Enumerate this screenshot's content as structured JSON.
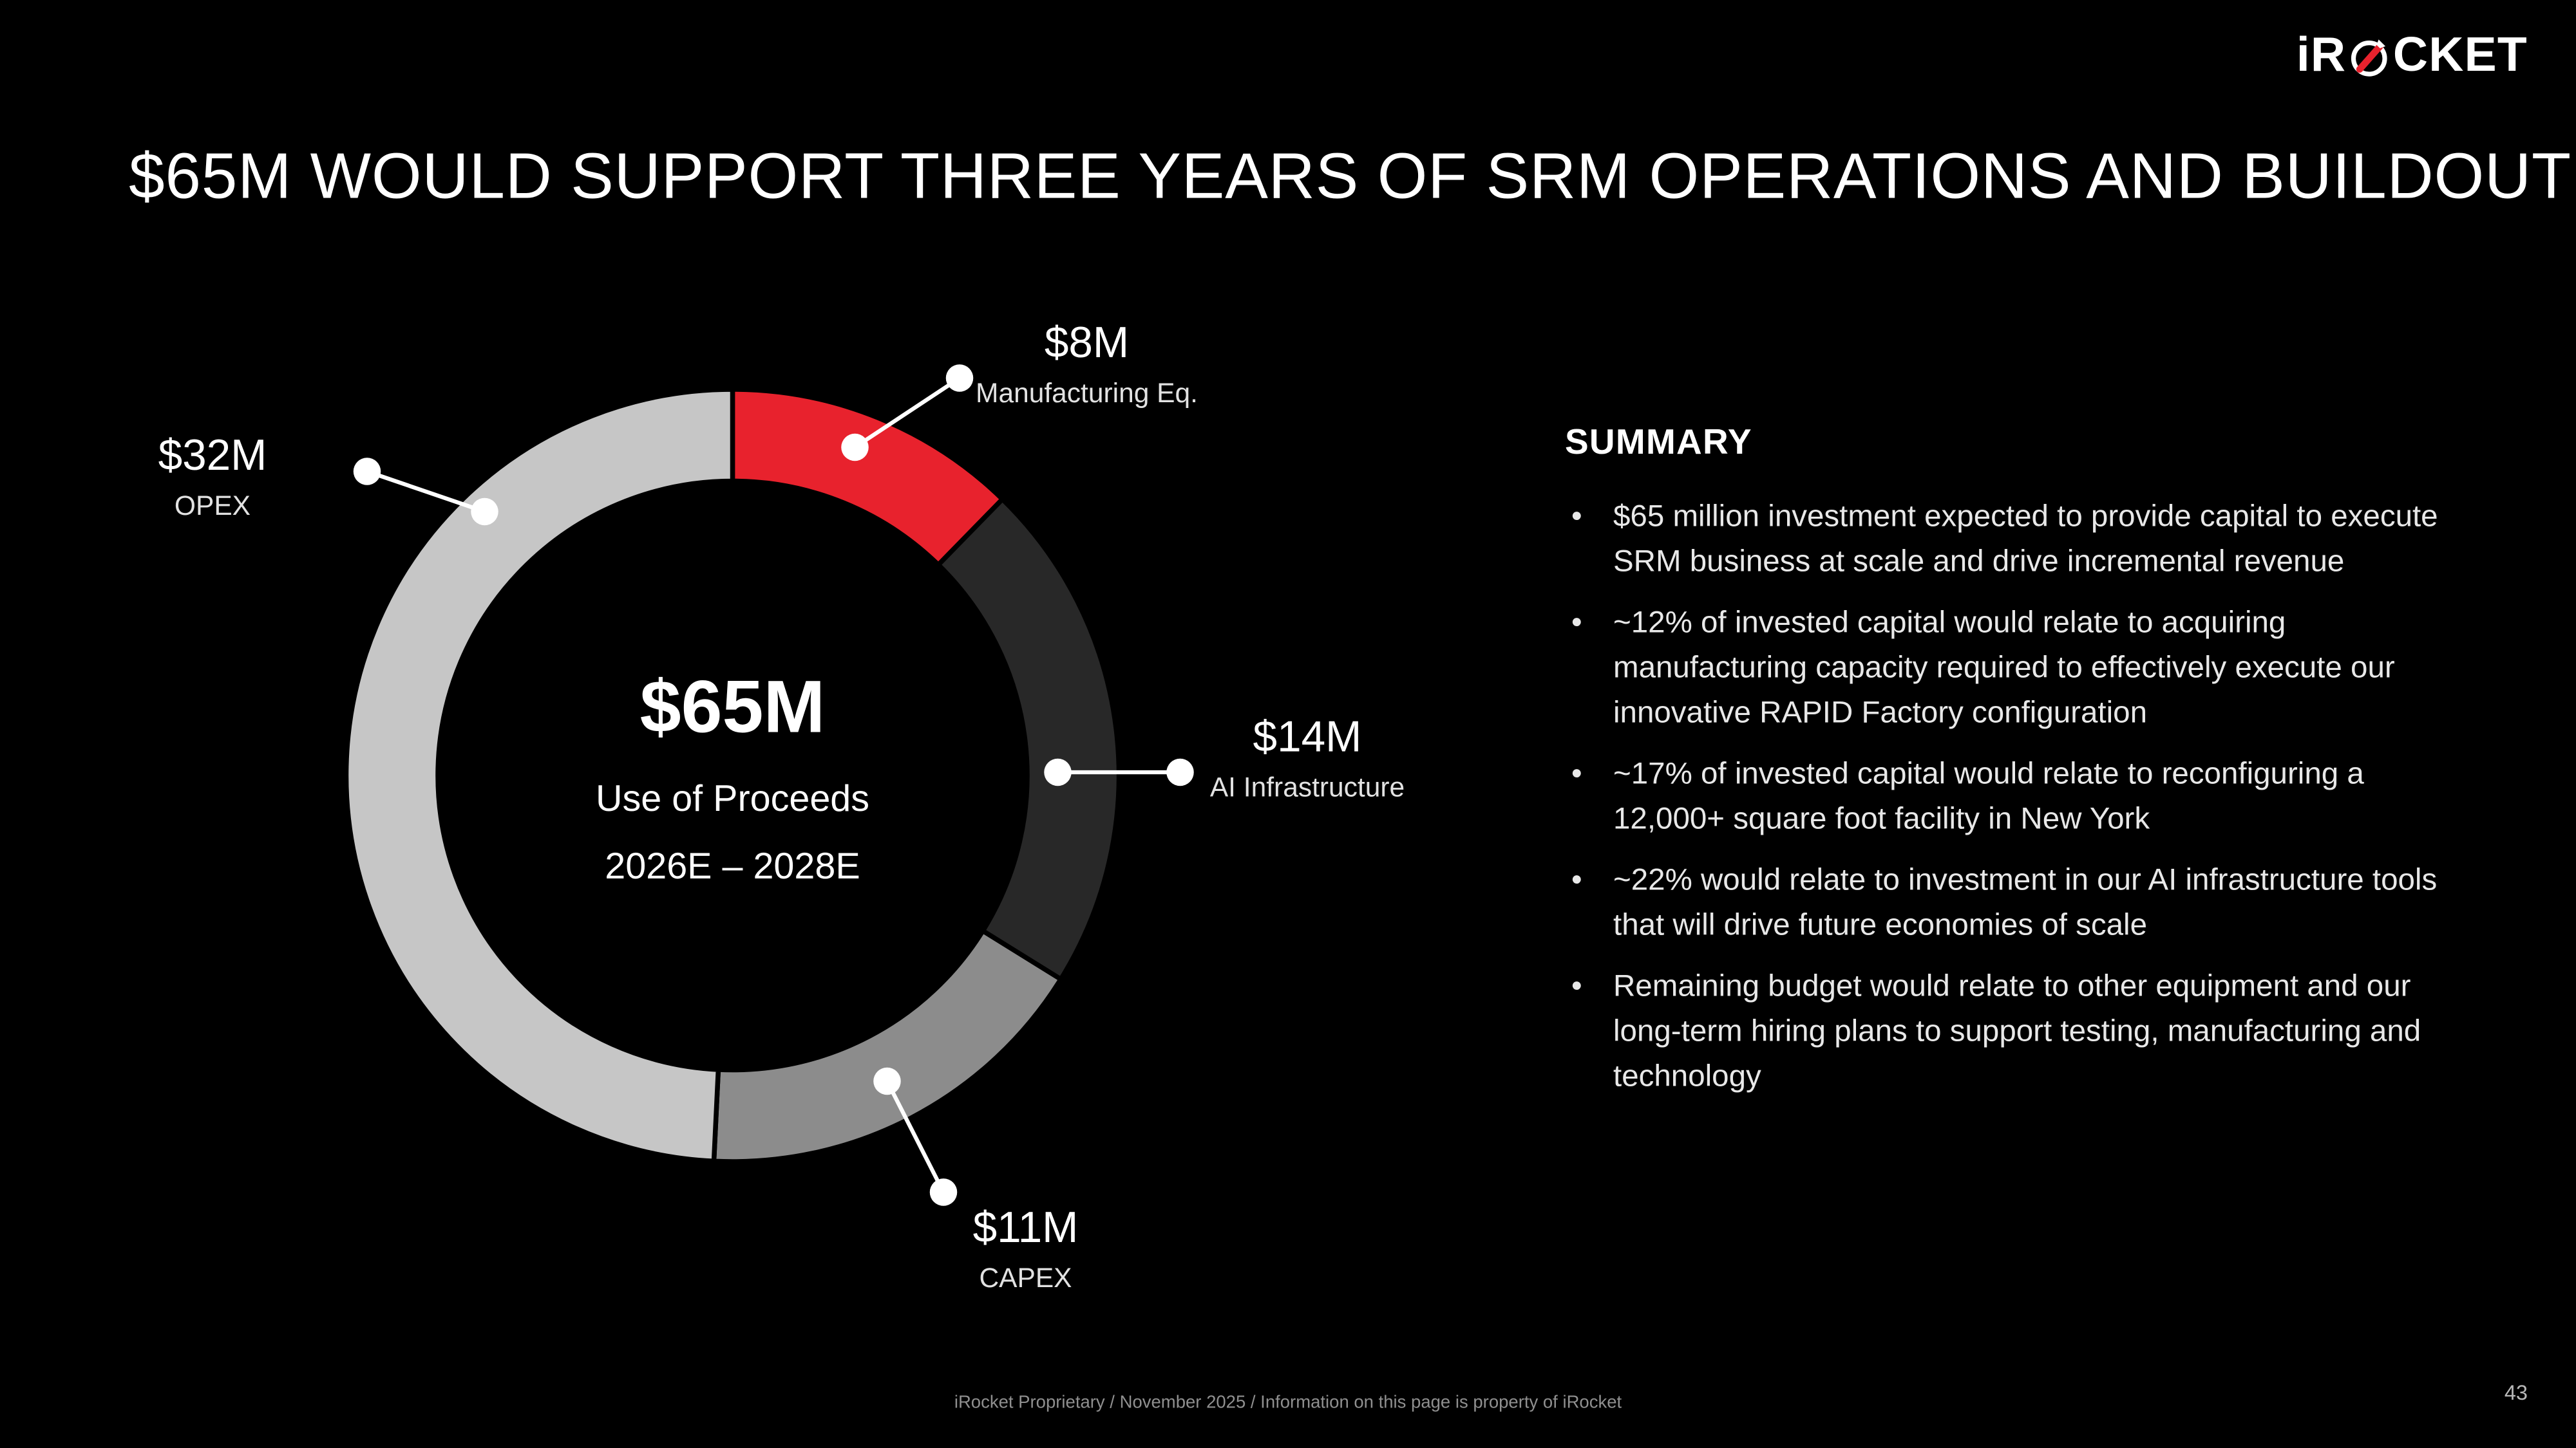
{
  "page": {
    "title": "$65M WOULD SUPPORT THREE YEARS OF SRM OPERATIONS AND BUILDOUT",
    "footer": "iRocket Proprietary / November 2025 / Information on this page is property of iRocket",
    "page_number": "43"
  },
  "logo": {
    "left": "iR",
    "right": "CKET",
    "accent_color": "#e8222d"
  },
  "chart_data": {
    "type": "pie",
    "variant": "donut",
    "title": "$65M",
    "subtitle": "Use of Proceeds",
    "period": "2026E – 2028E",
    "total": 65,
    "unit": "$M",
    "start_angle_deg": 0,
    "direction": "clockwise",
    "slices": [
      {
        "label": "Manufacturing Eq.",
        "value_label": "$8M",
        "value": 8,
        "color": "#e8222d"
      },
      {
        "label": "AI Infrastructure",
        "value_label": "$14M",
        "value": 14,
        "color": "#282828"
      },
      {
        "label": "CAPEX",
        "value_label": "$11M",
        "value": 11,
        "color": "#8c8c8c"
      },
      {
        "label": "OPEX",
        "value_label": "$32M",
        "value": 32,
        "color": "#c6c6c6"
      }
    ]
  },
  "summary": {
    "heading": "SUMMARY",
    "bullets": [
      "$65 million investment expected to provide capital to execute SRM business at scale and drive incremental revenue",
      "~12% of invested capital would relate to acquiring manufacturing capacity required to effectively execute our innovative RAPID Factory configuration",
      "~17% of invested capital would relate to reconfiguring a 12,000+ square foot facility in New York",
      "~22% would relate to investment in our AI infrastructure tools that will drive future economies of scale",
      "Remaining budget would relate to other equipment and our long-term hiring plans to support testing, manufacturing and technology"
    ]
  }
}
